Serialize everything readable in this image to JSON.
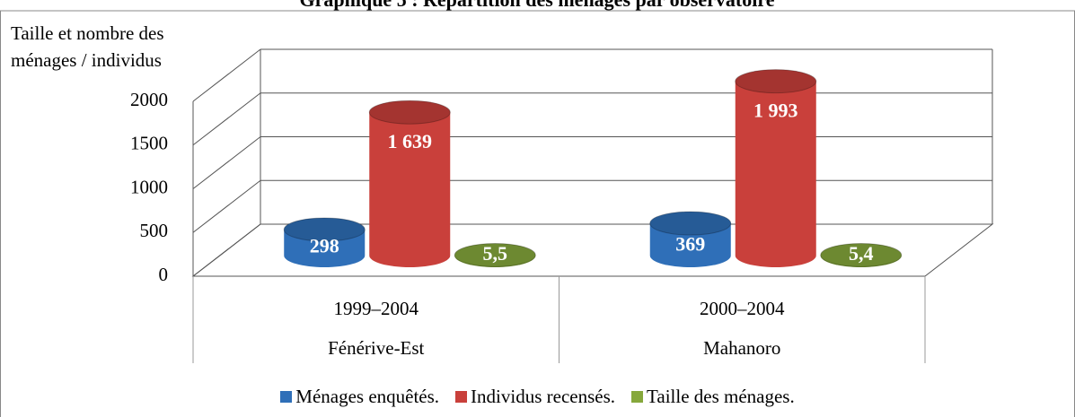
{
  "chart_data": {
    "type": "bar3d",
    "title": "Graphique 5 : Répartition des ménages par observatoire",
    "y_label": "Taille et nombre des ménages / individus",
    "categories": [
      "1999–2004",
      "2000–2004"
    ],
    "groups": [
      "Fénérive-Est",
      "Mahanoro"
    ],
    "series": [
      {
        "name": "Ménages enquêtés.",
        "color": "#2f6fb8",
        "values": [
          298,
          369
        ],
        "value_labels": [
          "298",
          "369"
        ]
      },
      {
        "name": "Individus recensés.",
        "color": "#c9403b",
        "values": [
          1639,
          1993
        ],
        "value_labels": [
          "1 639",
          "1 993"
        ]
      },
      {
        "name": "Taille des ménages.",
        "color": "#86a83c",
        "values": [
          5.5,
          5.4
        ],
        "value_labels": [
          "5,5",
          "5,4"
        ]
      }
    ],
    "ylim": [
      0,
      2000
    ],
    "yticks": [
      0,
      500,
      1000,
      1500,
      2000
    ],
    "grid": true,
    "legend": "bottom"
  }
}
